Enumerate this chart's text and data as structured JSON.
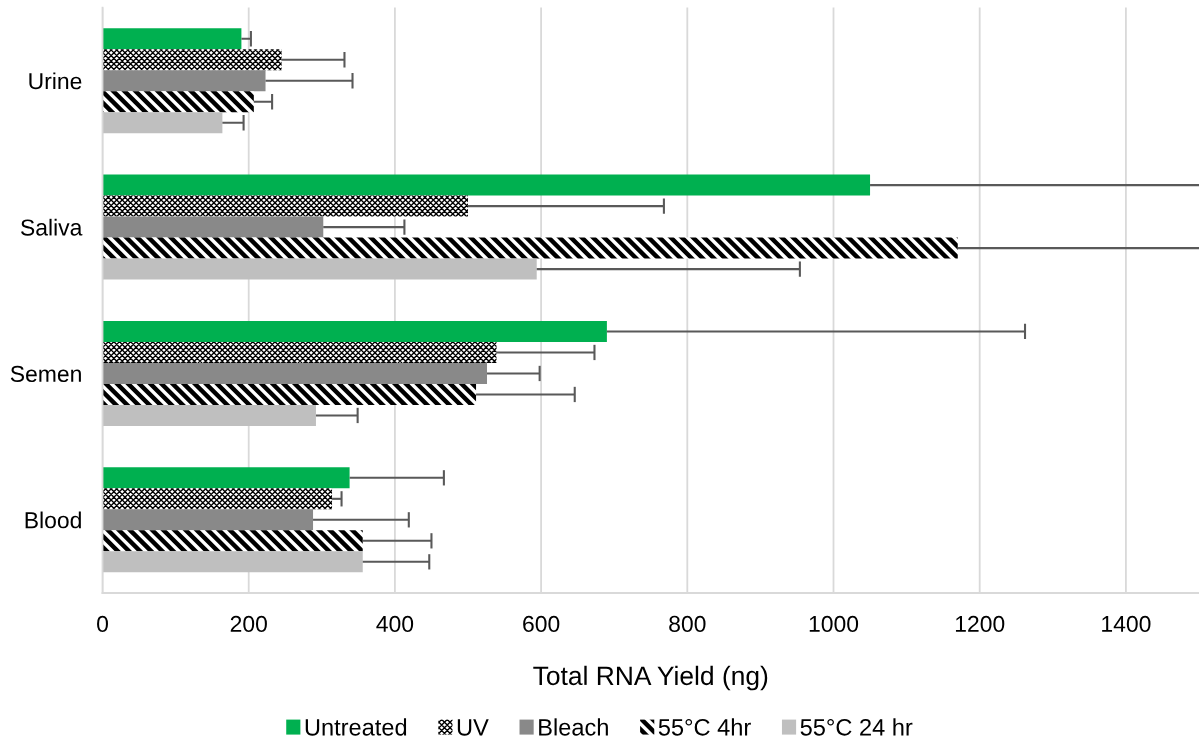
{
  "chart_data": {
    "type": "bar",
    "orientation": "horizontal",
    "categories": [
      "Urine",
      "Saliva",
      "Semen",
      "Blood"
    ],
    "xlabel": "Total RNA Yield (ng)",
    "xlim": [
      0,
      1500
    ],
    "xticks": [
      0,
      200,
      400,
      600,
      800,
      1000,
      1200,
      1400
    ],
    "grid": "x",
    "legend": "bottom",
    "series": [
      {
        "name": "Untreated",
        "color": "#00b050",
        "values": [
          190,
          1050,
          690,
          338
        ],
        "errors": [
          [
            190,
            203
          ],
          [
            1050,
            1500
          ],
          [
            690,
            1262
          ],
          [
            338,
            467
          ]
        ]
      },
      {
        "name": "UV",
        "color": "#000000",
        "values": [
          245,
          500,
          539,
          314
        ],
        "errors": [
          [
            245,
            331
          ],
          [
            500,
            768
          ],
          [
            539,
            673
          ],
          [
            314,
            327
          ]
        ]
      },
      {
        "name": "Bleach",
        "color": "#898989",
        "values": [
          223,
          302,
          526,
          288
        ],
        "errors": [
          [
            223,
            342
          ],
          [
            302,
            413
          ],
          [
            526,
            598
          ],
          [
            288,
            419
          ]
        ]
      },
      {
        "name": "55°C 4hr",
        "color": "#000000",
        "values": [
          207,
          1170,
          511,
          356
        ],
        "errors": [
          [
            207,
            232
          ],
          [
            1170,
            1500
          ],
          [
            511,
            646
          ],
          [
            356,
            450
          ]
        ]
      },
      {
        "name": "55°C 24 hr",
        "color": "#bfbfbf",
        "values": [
          164,
          594,
          292,
          356
        ],
        "errors": [
          [
            164,
            193
          ],
          [
            594,
            954
          ],
          [
            292,
            349
          ],
          [
            356,
            447
          ]
        ]
      }
    ]
  }
}
